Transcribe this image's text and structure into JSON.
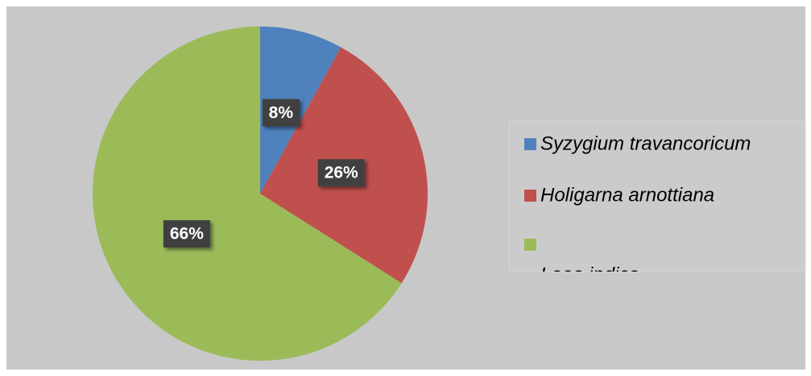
{
  "chart_data": {
    "type": "pie",
    "categories": [
      "Syzygium travancoricum",
      "Holigarna arnottiana",
      "Leea indica"
    ],
    "values": [
      8,
      26,
      66
    ],
    "value_labels": [
      "8%",
      "26%",
      "66%"
    ],
    "colors": [
      "#4f81bd",
      "#c0504d",
      "#9bbb59"
    ],
    "legend": "right"
  }
}
